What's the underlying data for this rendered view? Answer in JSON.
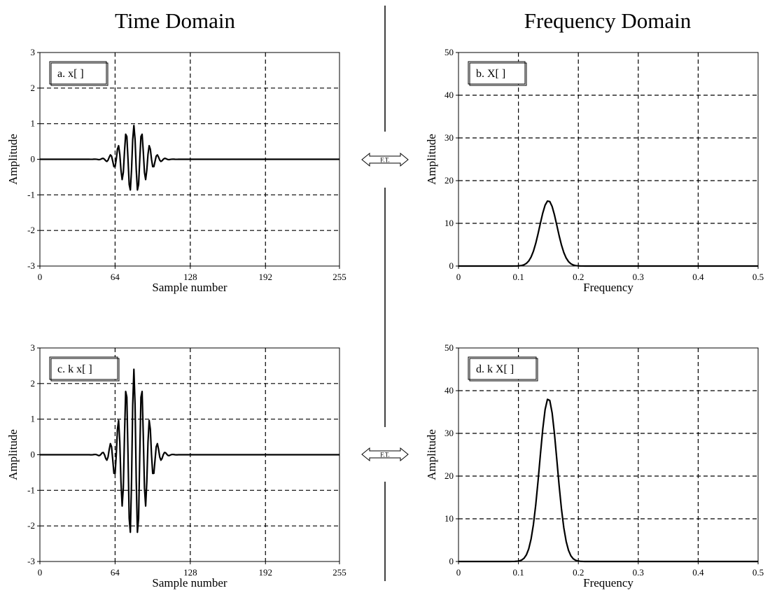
{
  "headings": {
    "left": "Time Domain",
    "right": "Frequency Domain"
  },
  "transform_label": "F.T.",
  "chart_data": [
    {
      "type": "line",
      "panel_label": "a.  x[ ]",
      "xlabel": "Sample number",
      "ylabel": "Amplitude",
      "xlim": [
        0,
        255
      ],
      "ylim": [
        -3,
        3
      ],
      "xticks": [
        0,
        64,
        128,
        192,
        255
      ],
      "yticks": [
        -3,
        -2,
        -1,
        0,
        1,
        2,
        3
      ],
      "xgrid": [
        64,
        128,
        192
      ],
      "ygrid": [
        -2,
        -1,
        1,
        2
      ],
      "grid": true,
      "series": [
        {
          "signal": {
            "kind": "sine-burst",
            "center": 80,
            "width": 14,
            "frequency": 0.15,
            "amplitude": 0.95,
            "n_samples": 256
          }
        }
      ]
    },
    {
      "type": "line",
      "panel_label": "b.  X[ ]",
      "xlabel": "Frequency",
      "ylabel": "Amplitude",
      "xlim": [
        0,
        0.5
      ],
      "ylim": [
        0,
        50
      ],
      "xticks": [
        0,
        0.1,
        0.2,
        0.3,
        0.4,
        0.5
      ],
      "yticks": [
        0,
        10,
        20,
        30,
        40,
        50
      ],
      "xgrid": [
        0.1,
        0.2,
        0.3,
        0.4
      ],
      "ygrid": [
        10,
        20,
        30,
        40
      ],
      "grid": true,
      "series": [
        {
          "signal": {
            "kind": "gaussian-peak",
            "center": 0.15,
            "sigma": 0.0145,
            "peak": 15.3,
            "n_points": 129
          }
        }
      ]
    },
    {
      "type": "line",
      "panel_label": "c.  k x[ ]",
      "xlabel": "Sample number",
      "ylabel": "Amplitude",
      "xlim": [
        0,
        255
      ],
      "ylim": [
        -3,
        3
      ],
      "xticks": [
        0,
        64,
        128,
        192,
        255
      ],
      "yticks": [
        -3,
        -2,
        -1,
        0,
        1,
        2,
        3
      ],
      "xgrid": [
        64,
        128,
        192
      ],
      "ygrid": [
        -2,
        -1,
        1,
        2
      ],
      "grid": true,
      "series": [
        {
          "signal": {
            "kind": "sine-burst",
            "center": 80,
            "width": 14,
            "frequency": 0.15,
            "amplitude": 2.4,
            "n_samples": 256
          }
        }
      ]
    },
    {
      "type": "line",
      "panel_label": "d.  k X[ ]",
      "xlabel": "Frequency",
      "ylabel": "Amplitude",
      "xlim": [
        0,
        0.5
      ],
      "ylim": [
        0,
        50
      ],
      "xticks": [
        0,
        0.1,
        0.2,
        0.3,
        0.4,
        0.5
      ],
      "yticks": [
        0,
        10,
        20,
        30,
        40,
        50
      ],
      "xgrid": [
        0.1,
        0.2,
        0.3,
        0.4
      ],
      "ygrid": [
        10,
        20,
        30,
        40
      ],
      "grid": true,
      "series": [
        {
          "signal": {
            "kind": "gaussian-peak",
            "center": 0.15,
            "sigma": 0.0145,
            "peak": 38.2,
            "n_points": 129
          }
        }
      ]
    }
  ]
}
